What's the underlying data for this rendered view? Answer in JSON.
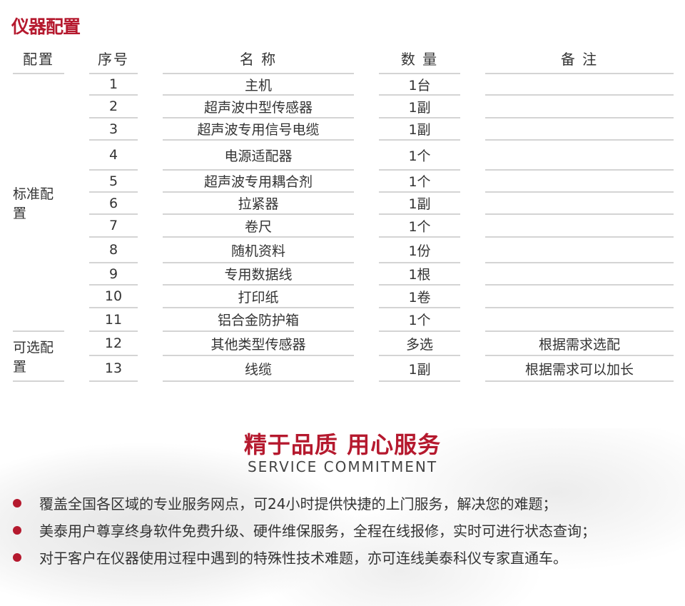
{
  "title": "仪器配置",
  "table": {
    "headers": [
      "配置",
      "序号",
      "名 称",
      "数 量",
      "备 注"
    ],
    "groups": [
      {
        "label": "标准配置"
      },
      {
        "label": "可选配置"
      }
    ],
    "rows": [
      {
        "no": "1",
        "name": "主机",
        "qty": "1台",
        "note": ""
      },
      {
        "no": "2",
        "name": "超声波中型传感器",
        "qty": "1副",
        "note": ""
      },
      {
        "no": "3",
        "name": "超声波专用信号电缆",
        "qty": "1副",
        "note": ""
      },
      {
        "no": "4",
        "name": "电源适配器",
        "qty": "1个",
        "note": ""
      },
      {
        "no": "5",
        "name": "超声波专用耦合剂",
        "qty": "1个",
        "note": ""
      },
      {
        "no": "6",
        "name": "拉紧器",
        "qty": "1副",
        "note": ""
      },
      {
        "no": "7",
        "name": "卷尺",
        "qty": "1个",
        "note": ""
      },
      {
        "no": "8",
        "name": "随机资料",
        "qty": "1份",
        "note": ""
      },
      {
        "no": "9",
        "name": "专用数据线",
        "qty": "1根",
        "note": ""
      },
      {
        "no": "10",
        "name": "打印纸",
        "qty": "1卷",
        "note": ""
      },
      {
        "no": "11",
        "name": "铝合金防护箱",
        "qty": "1个",
        "note": ""
      },
      {
        "no": "12",
        "name": "其他类型传感器",
        "qty": "多选",
        "note": "根据需求选配"
      },
      {
        "no": "13",
        "name": "线缆",
        "qty": "1副",
        "note": "根据需求可以加长"
      }
    ]
  },
  "service": {
    "title": "精于品质 用心服务",
    "subtitle": "SERVICE COMMITMENT",
    "items": [
      "覆盖全国各区域的专业服务网点，可24小时提供快捷的上门服务，解决您的难题；",
      "美泰用户尊享终身软件免费升级、硬件维保服务，全程在线报修，实时可进行状态查询；",
      "对于客户在仪器使用过程中遇到的特殊性技术难题，亦可连线美泰科仪专家直通车。"
    ]
  },
  "colors": {
    "accent": "#b5192e",
    "text": "#333333",
    "rule": "#d4d4d4"
  }
}
